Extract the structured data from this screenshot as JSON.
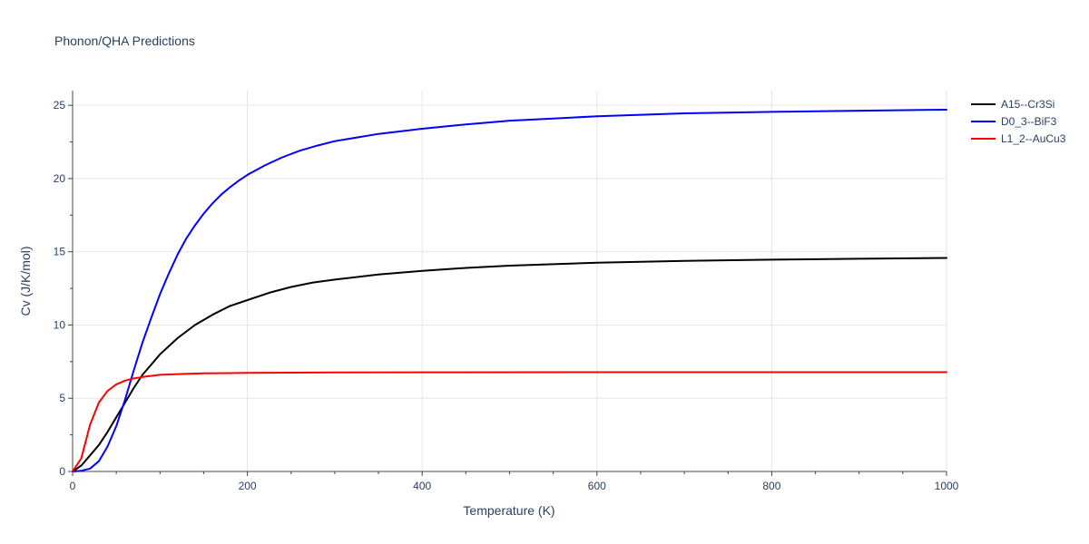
{
  "chart_data": {
    "type": "line",
    "title": "Phonon/QHA Predictions",
    "xlabel": "Temperature (K)",
    "ylabel": "Cv (J/K/mol)",
    "xlim": [
      0,
      1000
    ],
    "ylim": [
      0,
      26
    ],
    "x_ticks": [
      0,
      200,
      400,
      600,
      800,
      1000
    ],
    "x_tick_labels": [
      "0",
      "200",
      "400",
      "600",
      "800",
      "1000"
    ],
    "y_ticks": [
      0,
      5,
      10,
      15,
      20,
      25
    ],
    "y_tick_labels": [
      "0",
      "5",
      "10",
      "15",
      "20",
      "25"
    ],
    "grid": true,
    "legend_position": "top-right",
    "series": [
      {
        "name": "A15--Cr3Si",
        "color": "#000000",
        "x": [
          0,
          10,
          20,
          30,
          40,
          50,
          60,
          70,
          80,
          90,
          100,
          120,
          140,
          160,
          180,
          200,
          225,
          250,
          275,
          300,
          350,
          400,
          450,
          500,
          550,
          600,
          700,
          800,
          900,
          1000
        ],
        "y": [
          0,
          0.4,
          1.1,
          1.8,
          2.7,
          3.7,
          4.7,
          5.7,
          6.6,
          7.3,
          8.0,
          9.1,
          10.0,
          10.7,
          11.3,
          11.7,
          12.2,
          12.6,
          12.9,
          13.1,
          13.45,
          13.7,
          13.9,
          14.05,
          14.15,
          14.25,
          14.38,
          14.46,
          14.52,
          14.58
        ]
      },
      {
        "name": "D0_3--BiF3",
        "color": "#0000ff",
        "x": [
          0,
          10,
          20,
          30,
          40,
          50,
          60,
          70,
          80,
          90,
          100,
          110,
          120,
          130,
          140,
          150,
          160,
          170,
          180,
          190,
          200,
          220,
          240,
          260,
          280,
          300,
          350,
          400,
          450,
          500,
          550,
          600,
          700,
          800,
          900,
          1000
        ],
        "y": [
          0,
          0.05,
          0.2,
          0.7,
          1.7,
          3.1,
          4.9,
          6.9,
          8.8,
          10.5,
          12.1,
          13.5,
          14.8,
          15.9,
          16.8,
          17.6,
          18.3,
          18.9,
          19.4,
          19.85,
          20.25,
          20.9,
          21.45,
          21.9,
          22.25,
          22.55,
          23.05,
          23.4,
          23.7,
          23.95,
          24.1,
          24.25,
          24.45,
          24.55,
          24.63,
          24.7
        ]
      },
      {
        "name": "L1_2--AuCu3",
        "color": "#ff0000",
        "x": [
          0,
          10,
          20,
          30,
          40,
          50,
          60,
          70,
          80,
          100,
          120,
          150,
          200,
          300,
          400,
          600,
          800,
          1000
        ],
        "y": [
          0,
          0.9,
          3.2,
          4.7,
          5.5,
          5.95,
          6.2,
          6.35,
          6.45,
          6.6,
          6.65,
          6.7,
          6.73,
          6.76,
          6.77,
          6.78,
          6.78,
          6.78
        ]
      }
    ]
  }
}
